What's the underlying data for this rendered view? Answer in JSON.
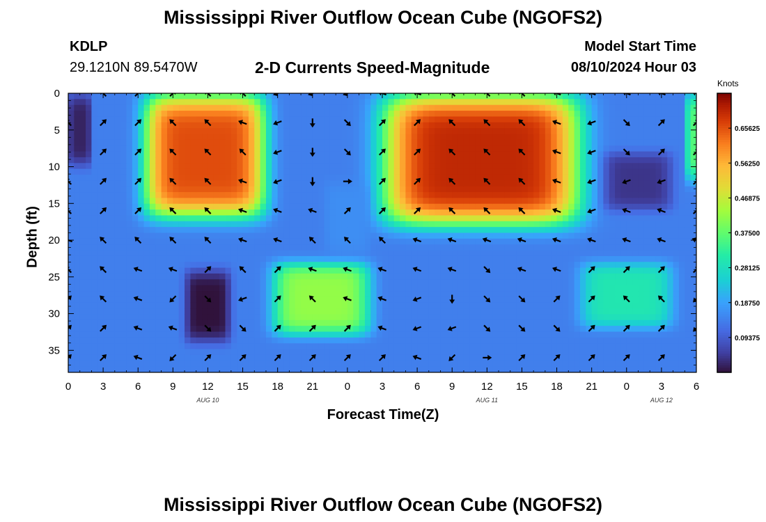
{
  "title": "Mississippi River Outflow Ocean Cube (NGOFS2)",
  "title_repeat": "Mississippi River Outflow Ocean Cube (NGOFS2)",
  "station": {
    "id": "KDLP",
    "coords": "29.1210N  89.5470W"
  },
  "subtitle": "2-D Currents Speed-Magnitude",
  "model_start": {
    "label": "Model Start Time",
    "value": "08/10/2024 Hour 03"
  },
  "chart_data": {
    "type": "heatmap",
    "title": "2-D Currents Speed-Magnitude",
    "xlabel": "Forecast Time(Z)",
    "ylabel": "Depth (ft)",
    "x_tick_labels": [
      "0",
      "3",
      "6",
      "9",
      "12",
      "15",
      "18",
      "21",
      "0",
      "3",
      "6",
      "9",
      "12",
      "15",
      "18",
      "21",
      "0",
      "3",
      "6"
    ],
    "x_hours": [
      0,
      54
    ],
    "date_labels": [
      {
        "text": "AUG 10",
        "hour": 12
      },
      {
        "text": "AUG 11",
        "hour": 36
      },
      {
        "text": "AUG 12",
        "hour": 51
      }
    ],
    "y_ticks": [
      0,
      5,
      10,
      15,
      20,
      25,
      30,
      35
    ],
    "ylim": [
      0,
      38
    ],
    "y_inverted": true,
    "colorbar": {
      "unit": "Knots",
      "range": [
        0,
        0.75
      ],
      "tick_values": [
        0.09375,
        0.1875,
        0.28125,
        0.375,
        0.46875,
        0.5625,
        0.65625
      ],
      "tick_labels": [
        "0.09375",
        "0.18750",
        "0.28125",
        "0.37500",
        "0.46875",
        "0.56250",
        "0.65625"
      ],
      "colormap": "turbo"
    },
    "speed_features": [
      {
        "hours": [
          6.5,
          17
        ],
        "depth": [
          0,
          17
        ],
        "speed": 0.66
      },
      {
        "hours": [
          27,
          44
        ],
        "depth": [
          0,
          18
        ],
        "speed": 0.7
      },
      {
        "hours": [
          17.5,
          26
        ],
        "depth": [
          23,
          33
        ],
        "speed": 0.42
      },
      {
        "hours": [
          44,
          52
        ],
        "depth": [
          23,
          32
        ],
        "speed": 0.3
      },
      {
        "hours": [
          53.5,
          54
        ],
        "depth": [
          0,
          12
        ],
        "speed": 0.36
      },
      {
        "hours": [
          0,
          2
        ],
        "depth": [
          0,
          10
        ],
        "speed": 0.02
      },
      {
        "hours": [
          10,
          14
        ],
        "depth": [
          24,
          34
        ],
        "speed": 0.0
      },
      {
        "hours": [
          46,
          52
        ],
        "depth": [
          8,
          16
        ],
        "speed": 0.04
      },
      {
        "hours": [
          22,
          26
        ],
        "depth": [
          12,
          22
        ],
        "speed": 0.16
      }
    ],
    "vector_hours": [
      0,
      3,
      6,
      9,
      12,
      15,
      18,
      21,
      24,
      27,
      30,
      33,
      36,
      39,
      42,
      45,
      48,
      51,
      54
    ],
    "vector_depths": [
      0,
      4,
      8,
      12,
      16,
      20,
      24,
      28,
      32,
      36
    ],
    "vector_directions_deg": [
      [
        null,
        135,
        45,
        45,
        135,
        135,
        200,
        200,
        200,
        160,
        160,
        135,
        135,
        135,
        160,
        160,
        160,
        160,
        160
      ],
      [
        135,
        45,
        45,
        135,
        135,
        160,
        200,
        270,
        315,
        45,
        45,
        135,
        135,
        135,
        160,
        200,
        315,
        45,
        45
      ],
      [
        null,
        45,
        45,
        135,
        135,
        135,
        200,
        270,
        315,
        45,
        45,
        135,
        135,
        135,
        160,
        200,
        315,
        45,
        45
      ],
      [
        135,
        45,
        45,
        135,
        135,
        160,
        200,
        270,
        0,
        45,
        45,
        135,
        135,
        135,
        160,
        200,
        200,
        200,
        45
      ],
      [
        135,
        45,
        45,
        135,
        135,
        160,
        160,
        160,
        45,
        45,
        45,
        135,
        135,
        135,
        160,
        200,
        160,
        160,
        45
      ],
      [
        160,
        135,
        135,
        135,
        135,
        160,
        160,
        135,
        135,
        135,
        160,
        160,
        160,
        160,
        160,
        160,
        160,
        160,
        160
      ],
      [
        135,
        135,
        160,
        160,
        45,
        135,
        45,
        160,
        160,
        160,
        160,
        160,
        315,
        160,
        160,
        45,
        45,
        45,
        45
      ],
      [
        45,
        135,
        160,
        225,
        315,
        200,
        45,
        135,
        160,
        160,
        200,
        270,
        315,
        315,
        45,
        45,
        135,
        135,
        225
      ],
      [
        45,
        45,
        160,
        160,
        315,
        315,
        45,
        45,
        45,
        160,
        200,
        200,
        315,
        315,
        315,
        45,
        45,
        45,
        225
      ],
      [
        45,
        45,
        160,
        225,
        45,
        45,
        45,
        45,
        45,
        45,
        160,
        225,
        0,
        45,
        45,
        45,
        45,
        45,
        null
      ]
    ]
  }
}
